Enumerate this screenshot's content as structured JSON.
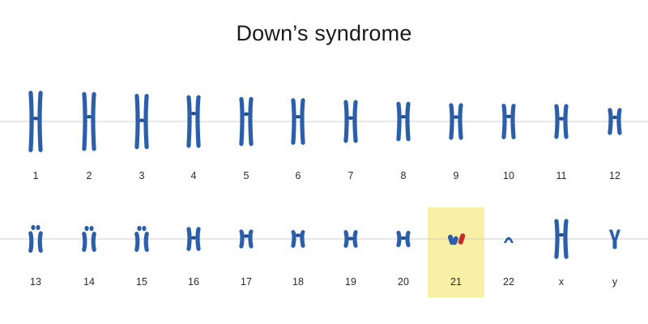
{
  "title": "Down’s syndrome",
  "colors": {
    "chromosome": "#2b5faa",
    "chromosome_dark": "#244f90",
    "extra_chromosome": "#cc2a2a",
    "highlight": "#f8f0a4",
    "guide_line": "#cfcfcf",
    "background": "#ffffff"
  },
  "rows": [
    {
      "pairs": [
        {
          "label": "1",
          "length": 1.0,
          "centromere": 0.45,
          "type": "x"
        },
        {
          "label": "2",
          "length": 0.96,
          "centromere": 0.42,
          "type": "x"
        },
        {
          "label": "3",
          "length": 0.9,
          "centromere": 0.48,
          "type": "x"
        },
        {
          "label": "4",
          "length": 0.86,
          "centromere": 0.35,
          "type": "x"
        },
        {
          "label": "5",
          "length": 0.8,
          "centromere": 0.35,
          "type": "x"
        },
        {
          "label": "6",
          "length": 0.76,
          "centromere": 0.4,
          "type": "x"
        },
        {
          "label": "7",
          "length": 0.7,
          "centromere": 0.42,
          "type": "x"
        },
        {
          "label": "8",
          "length": 0.64,
          "centromere": 0.38,
          "type": "x"
        },
        {
          "label": "9",
          "length": 0.6,
          "centromere": 0.38,
          "type": "x"
        },
        {
          "label": "10",
          "length": 0.58,
          "centromere": 0.36,
          "type": "x"
        },
        {
          "label": "11",
          "length": 0.57,
          "centromere": 0.42,
          "type": "x"
        },
        {
          "label": "12",
          "length": 0.44,
          "centromere": 0.35,
          "type": "x"
        }
      ]
    },
    {
      "pairs": [
        {
          "label": "13",
          "length": 0.45,
          "centromere": 0.25,
          "type": "acro"
        },
        {
          "label": "14",
          "length": 0.42,
          "centromere": 0.25,
          "type": "acro"
        },
        {
          "label": "15",
          "length": 0.42,
          "centromere": 0.25,
          "type": "acro"
        },
        {
          "label": "16",
          "length": 0.39,
          "centromere": 0.45,
          "type": "x"
        },
        {
          "label": "17",
          "length": 0.31,
          "centromere": 0.35,
          "type": "x"
        },
        {
          "label": "18",
          "length": 0.29,
          "centromere": 0.3,
          "type": "x"
        },
        {
          "label": "19",
          "length": 0.29,
          "centromere": 0.48,
          "type": "x"
        },
        {
          "label": "20",
          "length": 0.27,
          "centromere": 0.45,
          "type": "x"
        },
        {
          "label": "21",
          "length": 0.2,
          "centromere": 0.3,
          "type": "trisomy",
          "highlighted": true
        },
        {
          "label": "22",
          "length": 0.17,
          "centromere": 0.3,
          "type": "acro-small"
        },
        {
          "label": "x",
          "length": 0.65,
          "centromere": 0.4,
          "type": "x"
        },
        {
          "label": "y",
          "length": 0.25,
          "centromere": 0.4,
          "type": "y"
        }
      ]
    }
  ]
}
